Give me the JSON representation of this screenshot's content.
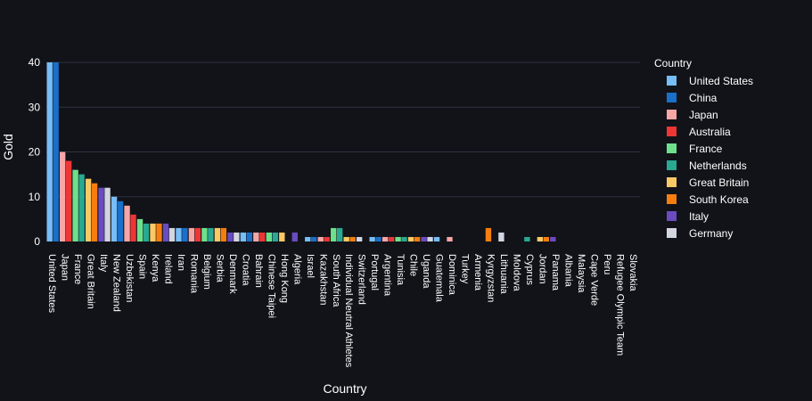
{
  "chart_data": {
    "type": "bar",
    "title": "",
    "xlabel": "Country",
    "ylabel": "Gold",
    "ylim": [
      0,
      40
    ],
    "yticks": [
      0,
      10,
      20,
      30,
      40
    ],
    "grid": true,
    "legend_position": "right",
    "legend_title": "Country",
    "categories": [
      "United States",
      "Japan",
      "France",
      "Great Britain",
      "Italy",
      "New Zealand",
      "Uzbekistan",
      "Spain",
      "Kenya",
      "Ireland",
      "Iran",
      "Romania",
      "Belgium",
      "Serbia",
      "Denmark",
      "Croatia",
      "Bahrain",
      "Chinese Taipei",
      "Hong Kong",
      "Algeria",
      "Israel",
      "Kazakhstan",
      "South Africa",
      "Individual Neutral Athletes",
      "Switzerland",
      "Portugal",
      "Argentina",
      "Tunisia",
      "Chile",
      "Uganda",
      "Guatemala",
      "Dominica",
      "Turkey",
      "Armenia",
      "Kyrgyzstan",
      "Lithuania",
      "Moldova",
      "Cyprus",
      "Jordan",
      "Panama",
      "Albania",
      "Malaysia",
      "Cape Verde",
      "Peru",
      "Refugee Olympic Team",
      "Slovakia"
    ],
    "series": [
      {
        "name": "United States",
        "color": "#77bdf7",
        "values": [
          40,
          0,
          0,
          0,
          0,
          0,
          0,
          0,
          0,
          0,
          0,
          0,
          0,
          0,
          0,
          0,
          0,
          0,
          0,
          0,
          0,
          0,
          0,
          0,
          0,
          0,
          0,
          0,
          0,
          0,
          0,
          0,
          0,
          0,
          0,
          0,
          0,
          0,
          0,
          0,
          0,
          0,
          0,
          0,
          0,
          0
        ]
      },
      {
        "name": "China",
        "color": "#1a6fc8",
        "values": [
          40,
          0,
          0,
          0,
          0,
          0,
          0,
          0,
          0,
          0,
          0,
          0,
          0,
          0,
          0,
          0,
          0,
          0,
          0,
          0,
          0,
          0,
          0,
          0,
          0,
          0,
          0,
          0,
          0,
          0,
          0,
          0,
          0,
          0,
          0,
          0,
          0,
          0,
          0,
          0,
          0,
          0,
          0,
          0,
          0,
          0
        ]
      },
      {
        "name": "Japan",
        "color": "#f7a6a6",
        "values": [
          20,
          0,
          0,
          0,
          0,
          0,
          0,
          0,
          0,
          0,
          0,
          0,
          0,
          0,
          0,
          0,
          0,
          0,
          0,
          0,
          0,
          0,
          0,
          0,
          0,
          0,
          0,
          0,
          0,
          0,
          0,
          0,
          0,
          0,
          0,
          0,
          0,
          0,
          0,
          0,
          0,
          0,
          0,
          0,
          0,
          0
        ]
      },
      {
        "name": "Australia",
        "color": "#ee3636",
        "values": [
          18,
          0,
          0,
          0,
          0,
          0,
          0,
          0,
          0,
          0,
          0,
          0,
          0,
          0,
          0,
          0,
          0,
          0,
          0,
          0,
          0,
          0,
          0,
          0,
          0,
          0,
          0,
          0,
          0,
          0,
          0,
          0,
          0,
          0,
          0,
          0,
          0,
          0,
          0,
          0,
          0,
          0,
          0,
          0,
          0,
          0
        ]
      },
      {
        "name": "France",
        "color": "#6ee08b",
        "values": [
          0,
          16,
          0,
          0,
          0,
          0,
          0,
          0,
          0,
          0,
          0,
          0,
          0,
          0,
          0,
          0,
          0,
          0,
          0,
          0,
          0,
          0,
          0,
          0,
          0,
          0,
          0,
          0,
          0,
          0,
          0,
          0,
          0,
          0,
          0,
          0,
          0,
          0,
          0,
          0,
          0,
          0,
          0,
          0,
          0,
          0
        ]
      },
      {
        "name": "Netherlands",
        "color": "#2aa891",
        "values": [
          0,
          15,
          0,
          0,
          0,
          0,
          0,
          0,
          0,
          0,
          0,
          0,
          0,
          0,
          0,
          0,
          0,
          0,
          0,
          0,
          0,
          0,
          0,
          0,
          0,
          0,
          0,
          0,
          0,
          0,
          0,
          0,
          0,
          0,
          0,
          0,
          0,
          0,
          0,
          0,
          0,
          0,
          0,
          0,
          0,
          0
        ]
      },
      {
        "name": "Great Britain",
        "color": "#f9c965",
        "values": [
          0,
          0,
          14,
          0,
          0,
          0,
          0,
          0,
          0,
          0,
          0,
          0,
          0,
          0,
          0,
          0,
          0,
          0,
          0,
          0,
          0,
          0,
          0,
          0,
          0,
          0,
          0,
          0,
          0,
          0,
          0,
          0,
          0,
          0,
          0,
          0,
          0,
          0,
          0,
          0,
          0,
          0,
          0,
          0,
          0,
          0
        ]
      },
      {
        "name": "South Korea",
        "color": "#f57e0f",
        "values": [
          0,
          0,
          13,
          0,
          0,
          0,
          0,
          0,
          0,
          0,
          0,
          0,
          0,
          0,
          0,
          0,
          0,
          0,
          0,
          0,
          0,
          0,
          0,
          0,
          0,
          0,
          0,
          0,
          0,
          0,
          0,
          0,
          0,
          0,
          0,
          0,
          0,
          0,
          0,
          0,
          0,
          0,
          0,
          0,
          0,
          0
        ]
      },
      {
        "name": "Italy",
        "color": "#6a4bc0",
        "values": [
          0,
          0,
          0,
          12,
          0,
          0,
          0,
          0,
          0,
          0,
          0,
          0,
          0,
          0,
          0,
          0,
          0,
          0,
          0,
          0,
          0,
          0,
          0,
          0,
          0,
          0,
          0,
          0,
          0,
          0,
          0,
          0,
          0,
          0,
          0,
          0,
          0,
          0,
          0,
          0,
          0,
          0,
          0,
          0,
          0,
          0
        ]
      },
      {
        "name": "Germany",
        "color": "#d2d6e1",
        "values": [
          0,
          0,
          0,
          12,
          0,
          0,
          0,
          0,
          0,
          0,
          0,
          0,
          0,
          0,
          0,
          0,
          0,
          0,
          0,
          0,
          0,
          0,
          0,
          0,
          0,
          0,
          0,
          0,
          0,
          0,
          0,
          0,
          0,
          0,
          0,
          0,
          0,
          0,
          0,
          0,
          0,
          0,
          0,
          0,
          0,
          0
        ]
      }
    ],
    "bars": [
      {
        "x": "United States",
        "y": 40,
        "color": "#77bdf7"
      },
      {
        "x": "United States",
        "y": 40,
        "color": "#1a6fc8"
      },
      {
        "x": "Japan",
        "y": 20,
        "color": "#f7a6a6"
      },
      {
        "x": "Japan",
        "y": 18,
        "color": "#ee3636"
      },
      {
        "x": "France",
        "y": 16,
        "color": "#6ee08b"
      },
      {
        "x": "France",
        "y": 15,
        "color": "#2aa891"
      },
      {
        "x": "Great Britain",
        "y": 14,
        "color": "#f9c965"
      },
      {
        "x": "Great Britain",
        "y": 13,
        "color": "#f57e0f"
      },
      {
        "x": "Italy",
        "y": 12,
        "color": "#6a4bc0"
      },
      {
        "x": "Italy",
        "y": 12,
        "color": "#d2d6e1"
      },
      {
        "x": "New Zealand",
        "y": 10,
        "color": "#77bdf7"
      },
      {
        "x": "New Zealand",
        "y": 9,
        "color": "#1a6fc8"
      },
      {
        "x": "Uzbekistan",
        "y": 8,
        "color": "#f7a6a6"
      },
      {
        "x": "Uzbekistan",
        "y": 6,
        "color": "#ee3636"
      },
      {
        "x": "Spain",
        "y": 5,
        "color": "#6ee08b"
      },
      {
        "x": "Spain",
        "y": 4,
        "color": "#2aa891"
      },
      {
        "x": "Kenya",
        "y": 4,
        "color": "#f9c965"
      },
      {
        "x": "Kenya",
        "y": 4,
        "color": "#f57e0f"
      },
      {
        "x": "Ireland",
        "y": 4,
        "color": "#6a4bc0"
      },
      {
        "x": "Ireland",
        "y": 3,
        "color": "#d2d6e1"
      },
      {
        "x": "Iran",
        "y": 3,
        "color": "#77bdf7"
      },
      {
        "x": "Iran",
        "y": 3,
        "color": "#1a6fc8"
      },
      {
        "x": "Romania",
        "y": 3,
        "color": "#f7a6a6"
      },
      {
        "x": "Romania",
        "y": 3,
        "color": "#ee3636"
      },
      {
        "x": "Belgium",
        "y": 3,
        "color": "#6ee08b"
      },
      {
        "x": "Belgium",
        "y": 3,
        "color": "#2aa891"
      },
      {
        "x": "Serbia",
        "y": 3,
        "color": "#f9c965"
      },
      {
        "x": "Serbia",
        "y": 3,
        "color": "#f57e0f"
      },
      {
        "x": "Denmark",
        "y": 2,
        "color": "#6a4bc0"
      },
      {
        "x": "Denmark",
        "y": 2,
        "color": "#d2d6e1"
      },
      {
        "x": "Croatia",
        "y": 2,
        "color": "#77bdf7"
      },
      {
        "x": "Croatia",
        "y": 2,
        "color": "#1a6fc8"
      },
      {
        "x": "Bahrain",
        "y": 2,
        "color": "#f7a6a6"
      },
      {
        "x": "Bahrain",
        "y": 2,
        "color": "#ee3636"
      },
      {
        "x": "Chinese Taipei",
        "y": 2,
        "color": "#6ee08b"
      },
      {
        "x": "Chinese Taipei",
        "y": 2,
        "color": "#2aa891"
      },
      {
        "x": "Hong Kong",
        "y": 2,
        "color": "#f9c965"
      },
      {
        "x": "Algeria",
        "y": 2,
        "color": "#6a4bc0"
      },
      {
        "x": "Israel",
        "y": 1,
        "color": "#77bdf7"
      },
      {
        "x": "Israel",
        "y": 1,
        "color": "#1a6fc8"
      },
      {
        "x": "Kazakhstan",
        "y": 1,
        "color": "#f7a6a6"
      },
      {
        "x": "Kazakhstan",
        "y": 1,
        "color": "#ee3636"
      },
      {
        "x": "South Africa",
        "y": 3,
        "color": "#6ee08b"
      },
      {
        "x": "South Africa",
        "y": 3,
        "color": "#2aa891"
      },
      {
        "x": "Individual Neutral Athletes",
        "y": 1,
        "color": "#f9c965"
      },
      {
        "x": "Individual Neutral Athletes",
        "y": 1,
        "color": "#f57e0f"
      },
      {
        "x": "Switzerland",
        "y": 1,
        "color": "#d2d6e1"
      },
      {
        "x": "Portugal",
        "y": 1,
        "color": "#77bdf7"
      },
      {
        "x": "Portugal",
        "y": 1,
        "color": "#1a6fc8"
      },
      {
        "x": "Argentina",
        "y": 1,
        "color": "#f7a6a6"
      },
      {
        "x": "Argentina",
        "y": 1,
        "color": "#ee3636"
      },
      {
        "x": "Tunisia",
        "y": 1,
        "color": "#6ee08b"
      },
      {
        "x": "Tunisia",
        "y": 1,
        "color": "#2aa891"
      },
      {
        "x": "Chile",
        "y": 1,
        "color": "#f9c965"
      },
      {
        "x": "Chile",
        "y": 1,
        "color": "#f57e0f"
      },
      {
        "x": "Uganda",
        "y": 1,
        "color": "#6a4bc0"
      },
      {
        "x": "Uganda",
        "y": 1,
        "color": "#d2d6e1"
      },
      {
        "x": "Guatemala",
        "y": 1,
        "color": "#77bdf7"
      },
      {
        "x": "Dominica",
        "y": 1,
        "color": "#f7a6a6"
      },
      {
        "x": "Kyrgyzstan",
        "y": 3,
        "color": "#f57e0f"
      },
      {
        "x": "Lithuania",
        "y": 2,
        "color": "#d2d6e1"
      },
      {
        "x": "Cyprus",
        "y": 1,
        "color": "#2aa891"
      },
      {
        "x": "Jordan",
        "y": 1,
        "color": "#f9c965"
      },
      {
        "x": "Jordan",
        "y": 1,
        "color": "#f57e0f"
      },
      {
        "x": "Panama",
        "y": 1,
        "color": "#6a4bc0"
      }
    ]
  }
}
